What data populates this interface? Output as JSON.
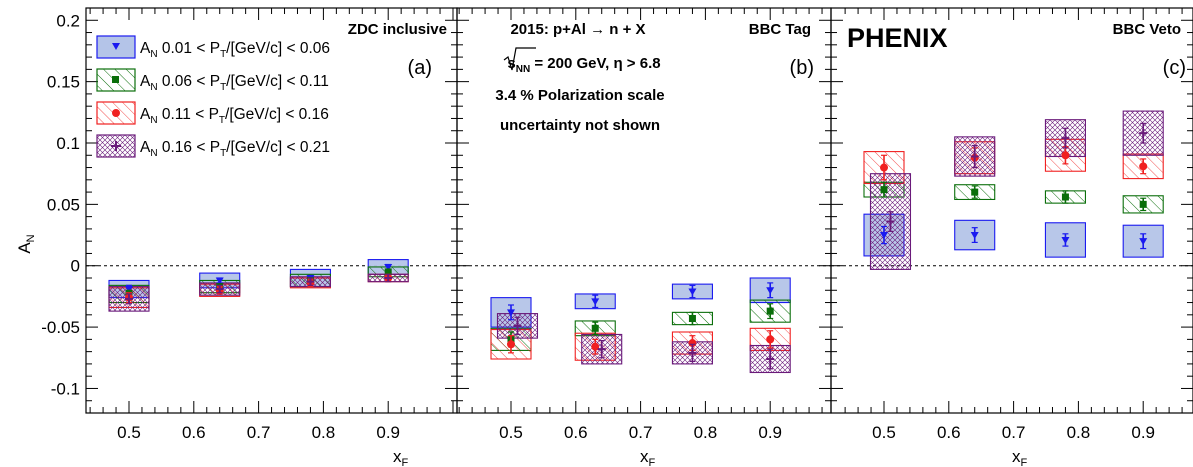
{
  "figure_labels": {
    "ylabel": "A",
    "ylabel_sub": "N",
    "xlabel": "x",
    "xlabel_sub": "F",
    "experiment": "PHENIX",
    "info_line1": "2015: p+Al → n + X",
    "info_line2_sqrt": "s",
    "info_line2_sub": "NN",
    "info_line2_rest": " = 200 GeV,  η > 6.8",
    "info_line3": "3.4 % Polarization scale",
    "info_line4": "uncertainty not shown"
  },
  "legend": [
    {
      "prefix": "A",
      "prefix_sub": "N",
      "range_lo": " 0.01 < P",
      "range_sub": "T",
      "range_hi": "/[GeV/c] < 0.06"
    },
    {
      "prefix": "A",
      "prefix_sub": "N",
      "range_lo": " 0.06 < P",
      "range_sub": "T",
      "range_hi": "/[GeV/c] < 0.11"
    },
    {
      "prefix": "A",
      "prefix_sub": "N",
      "range_lo": " 0.11 < P",
      "range_sub": "T",
      "range_hi": "/[GeV/c] < 0.16"
    },
    {
      "prefix": "A",
      "prefix_sub": "N",
      "range_lo": " 0.16 < P",
      "range_sub": "T",
      "range_hi": "/[GeV/c] < 0.21"
    }
  ],
  "colors": {
    "series": [
      "#1a1af0",
      "#0a6e0a",
      "#f02020",
      "#6a1a7a"
    ],
    "box_fill_blue": "#b4c4e8"
  },
  "chart_data": [
    {
      "type": "scatter",
      "panel_title": "ZDC inclusive",
      "panel_letter": "(a)",
      "xlim": [
        0.4,
        1.05
      ],
      "ylim": [
        -0.12,
        0.21
      ],
      "xticks": [
        "0.5",
        "0.6",
        "0.7",
        "0.8",
        "0.9"
      ],
      "yticks": [
        "-0.1",
        "-0.05",
        "0",
        "0.05",
        "0.1",
        "0.15",
        "0.2"
      ],
      "reference_line_y": 0,
      "series": [
        {
          "name": "A_N 0.01 < P_T/[GeV/c] < 0.06",
          "x": [
            0.5,
            0.64,
            0.78,
            0.9
          ],
          "y": [
            -0.019,
            -0.012,
            -0.01,
            -0.001
          ],
          "stat_err": [
            0.003,
            0.002,
            0.002,
            0.002
          ],
          "sys_err": [
            0.007,
            0.006,
            0.007,
            0.006
          ]
        },
        {
          "name": "A_N 0.06 < P_T/[GeV/c] < 0.11",
          "x": [
            0.5,
            0.64,
            0.78,
            0.9
          ],
          "y": [
            -0.023,
            -0.017,
            -0.012,
            -0.005
          ],
          "stat_err": [
            0.003,
            0.002,
            0.002,
            0.002
          ],
          "sys_err": [
            0.007,
            0.005,
            0.005,
            0.004
          ]
        },
        {
          "name": "A_N 0.11 < P_T/[GeV/c] < 0.16",
          "x": [
            0.5,
            0.64,
            0.78,
            0.9
          ],
          "y": [
            -0.026,
            -0.02,
            -0.014,
            -0.01
          ],
          "stat_err": [
            0.004,
            0.003,
            0.003,
            0.003
          ],
          "sys_err": [
            0.008,
            0.005,
            0.004,
            0.003
          ]
        },
        {
          "name": "A_N 0.16 < P_T/[GeV/c] < 0.21",
          "x": [
            0.5,
            0.64,
            0.78,
            0.9
          ],
          "y": [
            -0.027,
            -0.019,
            -0.013,
            -0.01
          ],
          "stat_err": [
            0.004,
            0.003,
            0.003,
            0.003
          ],
          "sys_err": [
            0.01,
            0.005,
            0.004,
            0.003
          ]
        }
      ]
    },
    {
      "type": "scatter",
      "panel_title": "BBC Tag",
      "panel_letter": "(b)",
      "xlim": [
        0.4,
        1.05
      ],
      "ylim": [
        -0.12,
        0.21
      ],
      "xticks": [
        "0.5",
        "0.6",
        "0.7",
        "0.8",
        "0.9"
      ],
      "yticks": [],
      "reference_line_y": 0,
      "series": [
        {
          "name": "A_N 0.01 < P_T/[GeV/c] < 0.06",
          "x": [
            0.5,
            0.63,
            0.78,
            0.9
          ],
          "y": [
            -0.038,
            -0.029,
            -0.021,
            -0.02
          ],
          "stat_err": [
            0.006,
            0.005,
            0.005,
            0.006
          ],
          "sys_err": [
            0.012,
            0.006,
            0.006,
            0.01
          ]
        },
        {
          "name": "A_N 0.06 < P_T/[GeV/c] < 0.11",
          "x": [
            0.5,
            0.63,
            0.78,
            0.9
          ],
          "y": [
            -0.06,
            -0.051,
            -0.043,
            -0.037
          ],
          "stat_err": [
            0.006,
            0.005,
            0.005,
            0.006
          ],
          "sys_err": [
            0.009,
            0.006,
            0.005,
            0.009
          ]
        },
        {
          "name": "A_N 0.11 < P_T/[GeV/c] < 0.16",
          "x": [
            0.5,
            0.63,
            0.78,
            0.9
          ],
          "y": [
            -0.064,
            -0.066,
            -0.063,
            -0.06
          ],
          "stat_err": [
            0.007,
            0.006,
            0.006,
            0.007
          ],
          "sys_err": [
            0.012,
            0.011,
            0.009,
            0.009
          ]
        },
        {
          "name": "A_N 0.16 < P_T/[GeV/c] < 0.21",
          "x": [
            0.51,
            0.64,
            0.78,
            0.9
          ],
          "y": [
            -0.049,
            -0.068,
            -0.071,
            -0.076
          ],
          "stat_err": [
            0.007,
            0.007,
            0.007,
            0.008
          ],
          "sys_err": [
            0.01,
            0.012,
            0.009,
            0.011
          ]
        }
      ]
    },
    {
      "type": "scatter",
      "panel_title": "BBC Veto",
      "panel_letter": "(c)",
      "xlim": [
        0.4,
        1.05
      ],
      "ylim": [
        -0.12,
        0.21
      ],
      "xticks": [
        "0.5",
        "0.6",
        "0.7",
        "0.8",
        "0.9"
      ],
      "yticks": [],
      "reference_line_y": 0,
      "series": [
        {
          "name": "A_N 0.01 < P_T/[GeV/c] < 0.06",
          "x": [
            0.5,
            0.64,
            0.78,
            0.9
          ],
          "y": [
            0.025,
            0.025,
            0.021,
            0.02
          ],
          "stat_err": [
            0.007,
            0.006,
            0.005,
            0.006
          ],
          "sys_err": [
            0.017,
            0.012,
            0.014,
            0.013
          ]
        },
        {
          "name": "A_N 0.06 < P_T/[GeV/c] < 0.11",
          "x": [
            0.5,
            0.64,
            0.78,
            0.9
          ],
          "y": [
            0.062,
            0.06,
            0.056,
            0.05
          ],
          "stat_err": [
            0.006,
            0.005,
            0.005,
            0.005
          ],
          "sys_err": [
            0.006,
            0.006,
            0.005,
            0.007
          ]
        },
        {
          "name": "A_N 0.11 < P_T/[GeV/c] < 0.16",
          "x": [
            0.5,
            0.64,
            0.78,
            0.9
          ],
          "y": [
            0.08,
            0.088,
            0.09,
            0.081
          ],
          "stat_err": [
            0.01,
            0.008,
            0.007,
            0.006
          ],
          "sys_err": [
            0.013,
            0.013,
            0.013,
            0.01
          ]
        },
        {
          "name": "A_N 0.16 < P_T/[GeV/c] < 0.21",
          "x": [
            0.51,
            0.64,
            0.78,
            0.9
          ],
          "y": [
            0.036,
            0.089,
            0.104,
            0.108
          ],
          "stat_err": [
            0.008,
            0.009,
            0.008,
            0.008
          ],
          "sys_err": [
            0.039,
            0.016,
            0.015,
            0.018
          ]
        }
      ]
    }
  ]
}
